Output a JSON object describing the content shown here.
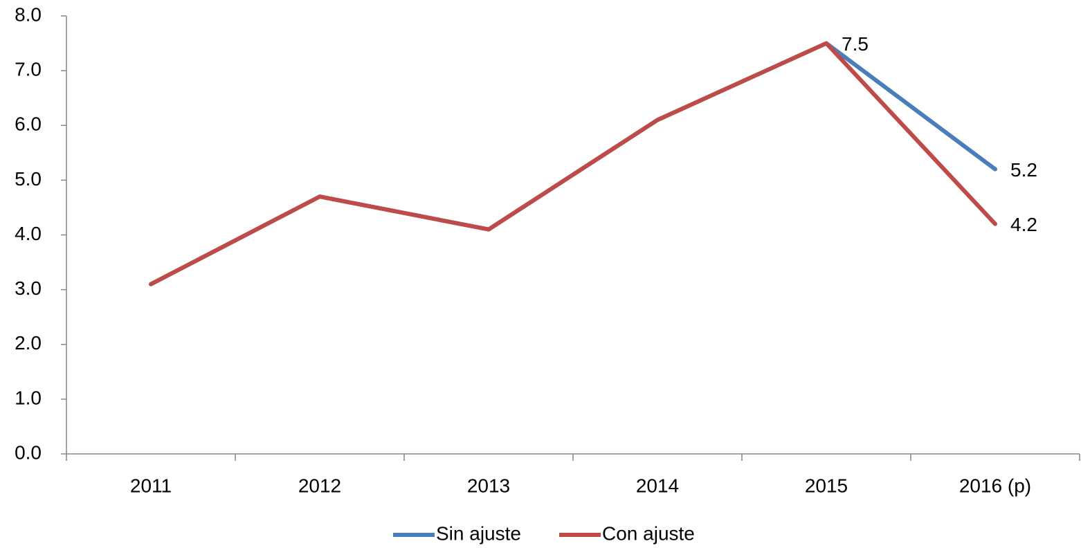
{
  "chart_data": {
    "type": "line",
    "categories": [
      "2011",
      "2012",
      "2013",
      "2014",
      "2015",
      "2016 (p)"
    ],
    "series": [
      {
        "name": "Sin ajuste",
        "color": "#4a7ebb",
        "values": [
          3.1,
          4.7,
          4.1,
          6.1,
          7.5,
          5.2
        ],
        "value_labels": [
          null,
          null,
          null,
          null,
          null,
          "5.2"
        ]
      },
      {
        "name": "Con ajuste",
        "color": "#be4b48",
        "values": [
          3.1,
          4.7,
          4.1,
          6.1,
          7.5,
          4.2
        ],
        "value_labels": [
          null,
          null,
          null,
          null,
          "7.5",
          "4.2"
        ]
      }
    ],
    "ylim": [
      0,
      8
    ],
    "yticks": [
      {
        "value": 0,
        "label": "0.0"
      },
      {
        "value": 1,
        "label": "1.0"
      },
      {
        "value": 2,
        "label": "2.0"
      },
      {
        "value": 3,
        "label": "3.0"
      },
      {
        "value": 4,
        "label": "4.0"
      },
      {
        "value": 5,
        "label": "5.0"
      },
      {
        "value": 6,
        "label": "6.0"
      },
      {
        "value": 7,
        "label": "7.0"
      },
      {
        "value": 8,
        "label": "8.0"
      }
    ],
    "legend": "bottom"
  }
}
